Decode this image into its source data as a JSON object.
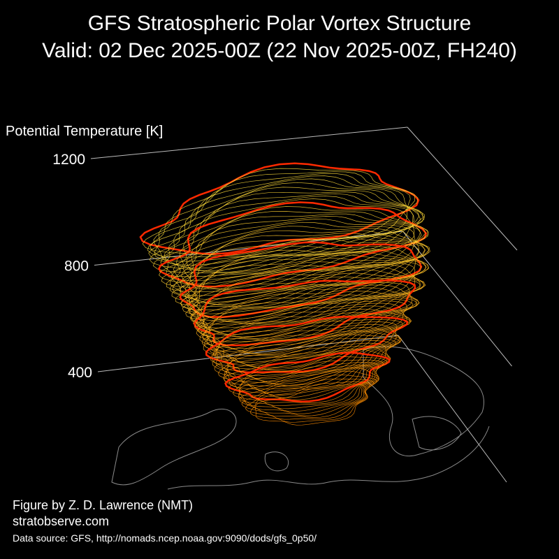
{
  "chart_data": {
    "type": "surface3d",
    "title": "GFS Stratospheric Polar Vortex Structure",
    "subtitle": "Valid: 02 Dec 2025-00Z  (22 Nov 2025-00Z, FH240)",
    "zlabel": "Potential Temperature [K]",
    "zlim": [
      400,
      1200
    ],
    "zticks": [
      400,
      800,
      1200
    ]
  },
  "credits": {
    "author": "Figure by Z. D. Lawrence (NMT)",
    "site": "stratobserve.com",
    "source": "Data source: GFS, http://nomads.ncep.noaa.gov:9090/dods/gfs_0p50/"
  }
}
